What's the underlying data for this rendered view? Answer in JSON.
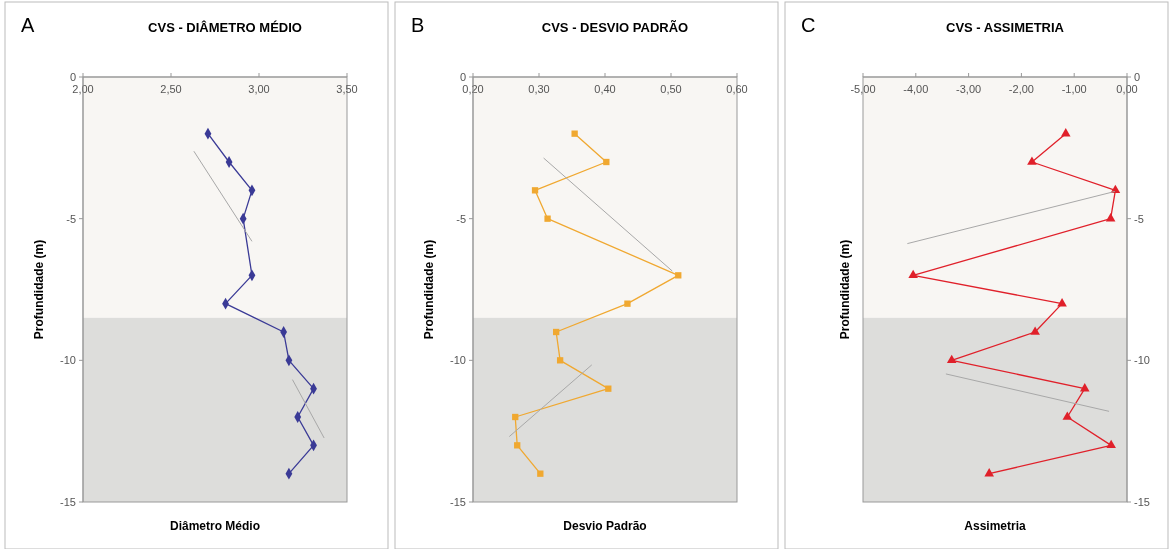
{
  "chart_data": [
    {
      "type": "line",
      "title": "CVS - DIÂMETRO MÉDIO",
      "xlabel": "Diâmetro Médio",
      "ylabel": "Profundidade (m)",
      "annotations": [
        "A"
      ],
      "xlim": [
        2,
        3.5
      ],
      "xticks": [
        {
          "value": 2,
          "label": "2,00"
        },
        {
          "value": 2.5,
          "label": "2,50"
        },
        {
          "value": 3,
          "label": "3,00"
        },
        {
          "value": 3.5,
          "label": "3,50"
        }
      ],
      "ylim": [
        -15,
        0
      ],
      "yticks": [
        0,
        -5,
        -10,
        -15
      ],
      "bands": [
        {
          "axis": "y",
          "from": -8.5,
          "to": 0,
          "color": "#f8f6f3"
        },
        {
          "axis": "y",
          "from": -15,
          "to": -8.5,
          "color": "#dddddb"
        }
      ],
      "series": [
        {
          "color": "#3a3a96",
          "marker": "diamond",
          "x": [
            2.71,
            2.83,
            2.96,
            2.91,
            2.96,
            2.81,
            3.14,
            3.17,
            3.31,
            3.22,
            3.31,
            3.17
          ],
          "values": [
            -2,
            -3,
            -4,
            -5,
            -7,
            -8,
            -9,
            -10,
            -11,
            -12,
            -13,
            -14
          ]
        },
        {
          "color": "#a8a8a8",
          "marker": "none",
          "x": [
            2.63,
            2.96
          ],
          "values": [
            -2.62,
            -5.8
          ]
        },
        {
          "color": "#a8a8a8",
          "marker": "none",
          "x": [
            3.19,
            3.37
          ],
          "values": [
            -10.68,
            -12.74
          ]
        }
      ]
    },
    {
      "type": "line",
      "title": "CVS - DESVIO PADRÃO",
      "xlabel": "Desvio Padrão",
      "ylabel": "Profundidade (m)",
      "annotations": [
        "B"
      ],
      "xlim": [
        0.2,
        0.6
      ],
      "xticks": [
        {
          "value": 0.2,
          "label": "0,20"
        },
        {
          "value": 0.3,
          "label": "0,30"
        },
        {
          "value": 0.4,
          "label": "0,40"
        },
        {
          "value": 0.5,
          "label": "0,50"
        },
        {
          "value": 0.6,
          "label": "0,60"
        }
      ],
      "ylim": [
        -15,
        0
      ],
      "yticks": [
        0,
        -5,
        -10,
        -15
      ],
      "bands": [
        {
          "axis": "y",
          "from": -8.5,
          "to": 0,
          "color": "#f8f6f3"
        },
        {
          "axis": "y",
          "from": -15,
          "to": -8.5,
          "color": "#dddddb"
        }
      ],
      "series": [
        {
          "color": "#f0a830",
          "marker": "square",
          "x": [
            0.354,
            0.402,
            0.294,
            0.313,
            0.511,
            0.434,
            0.326,
            0.332,
            0.405,
            0.264,
            0.267,
            0.302
          ],
          "values": [
            -2,
            -3,
            -4,
            -5,
            -7,
            -8,
            -9,
            -10,
            -11,
            -12,
            -13,
            -14
          ]
        },
        {
          "color": "#a8a8a8",
          "marker": "none",
          "x": [
            0.307,
            0.502
          ],
          "values": [
            -2.86,
            -6.85
          ]
        },
        {
          "color": "#a8a8a8",
          "marker": "none",
          "x": [
            0.38,
            0.255
          ],
          "values": [
            -10.16,
            -12.69
          ]
        }
      ]
    },
    {
      "type": "line",
      "title": "CVS - ASSIMETRIA",
      "xlabel": "Assimetria",
      "ylabel": "Profundidade (m)",
      "annotations": [
        "C"
      ],
      "xlim": [
        -5,
        0
      ],
      "xticks": [
        {
          "value": -5,
          "label": "-5,00"
        },
        {
          "value": -4,
          "label": "-4,00"
        },
        {
          "value": -3,
          "label": "-3,00"
        },
        {
          "value": -2,
          "label": "-2,00"
        },
        {
          "value": -1,
          "label": "-1,00"
        },
        {
          "value": 0,
          "label": "0,00"
        }
      ],
      "ylim": [
        -15,
        0
      ],
      "yticks": [
        0,
        -5,
        -10,
        -15
      ],
      "bands": [
        {
          "axis": "y",
          "from": -8.5,
          "to": 0,
          "color": "#f8f6f3"
        },
        {
          "axis": "y",
          "from": -15,
          "to": -8.5,
          "color": "#dddddb"
        }
      ],
      "series": [
        {
          "color": "#e0202a",
          "marker": "triangle",
          "x": [
            -1.16,
            -1.8,
            -0.22,
            -0.31,
            -4.05,
            -1.23,
            -1.74,
            -3.32,
            -0.8,
            -1.13,
            -0.3,
            -2.61
          ],
          "values": [
            -2,
            -3,
            -4,
            -5,
            -7,
            -8,
            -9,
            -10,
            -11,
            -12,
            -13,
            -14
          ]
        },
        {
          "color": "#a8a8a8",
          "marker": "none",
          "x": [
            -4.16,
            -0.23
          ],
          "values": [
            -5.88,
            -4.04
          ]
        },
        {
          "color": "#a8a8a8",
          "marker": "none",
          "x": [
            -3.43,
            -0.34
          ],
          "values": [
            -10.48,
            -11.8
          ]
        }
      ]
    }
  ]
}
